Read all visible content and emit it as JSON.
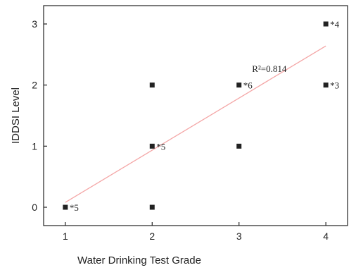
{
  "chart_data": {
    "type": "scatter",
    "title": "",
    "xlabel": "Water Drinking Test Grade",
    "ylabel": "IDDSI Level",
    "xlim": [
      0.75,
      4.25
    ],
    "ylim": [
      -0.3,
      3.3
    ],
    "x_ticks": [
      1,
      2,
      3,
      4
    ],
    "y_ticks": [
      0,
      1,
      2,
      3
    ],
    "points": [
      {
        "x": 1,
        "y": 0,
        "label": "*5"
      },
      {
        "x": 2,
        "y": 0,
        "label": ""
      },
      {
        "x": 2,
        "y": 1,
        "label": "*5"
      },
      {
        "x": 2,
        "y": 2,
        "label": ""
      },
      {
        "x": 3,
        "y": 1,
        "label": ""
      },
      {
        "x": 3,
        "y": 2,
        "label": "*6"
      },
      {
        "x": 4,
        "y": 2,
        "label": "*3"
      },
      {
        "x": 4,
        "y": 3,
        "label": "*4"
      }
    ],
    "fit_line": {
      "x": [
        1,
        4
      ],
      "y": [
        0.08,
        2.64
      ]
    },
    "r2_label": "R²=0.814",
    "r2_value": 0.814,
    "grid": false,
    "colors": {
      "points": "#222222",
      "fit_line": "#f4a6a6",
      "axis": "#222222"
    }
  }
}
